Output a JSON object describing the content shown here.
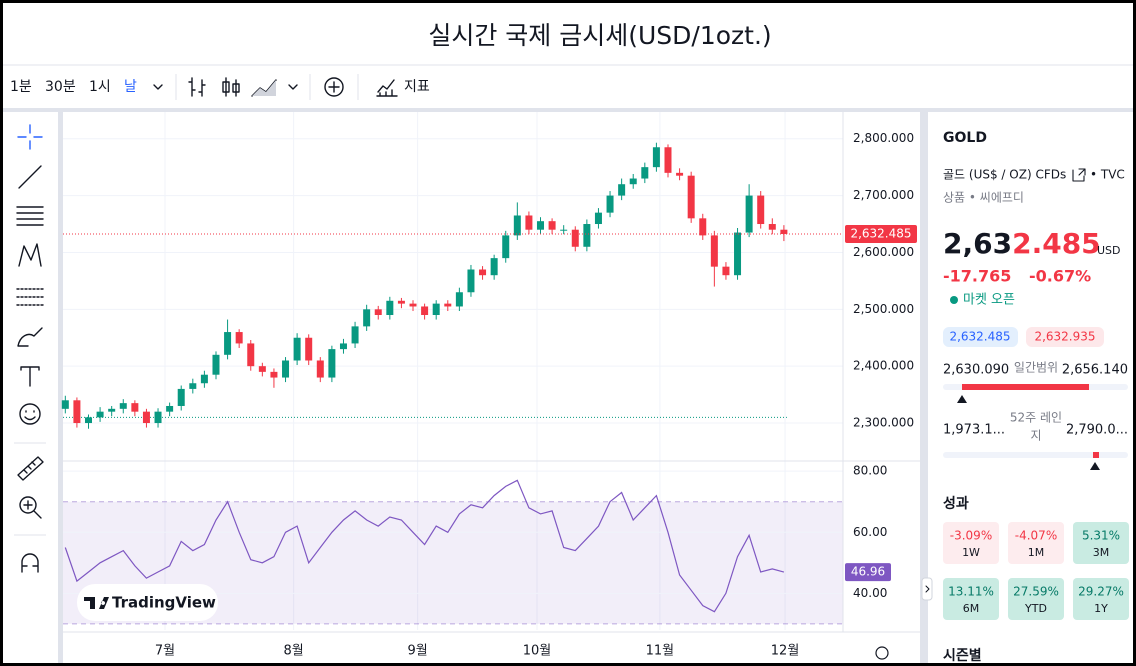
{
  "header": {
    "title": "실시간 국제 금시세(USD/1ozt.)"
  },
  "toolbar": {
    "intervals": [
      "1분",
      "30분",
      "1시",
      "날"
    ],
    "indicators": "지표"
  },
  "chart_data": {
    "type": "candlestick",
    "open": [
      2325,
      2340,
      2300,
      2310,
      2320,
      2325,
      2335,
      2320,
      2300,
      2320,
      2330,
      2360,
      2370,
      2385,
      2420,
      2460,
      2440,
      2400,
      2390,
      2380,
      2410,
      2450,
      2410,
      2380,
      2430,
      2440,
      2470,
      2500,
      2490,
      2515,
      2510,
      2505,
      2490,
      2510,
      2505,
      2530,
      2570,
      2560,
      2590,
      2630,
      2665,
      2640,
      2655,
      2640,
      2640,
      2610,
      2650,
      2670,
      2700,
      2720,
      2730,
      2750,
      2785,
      2740,
      2735,
      2660,
      2630,
      2575,
      2560,
      2635,
      2700,
      2650,
      2640
    ],
    "high": [
      2348,
      2345,
      2315,
      2328,
      2330,
      2342,
      2340,
      2325,
      2326,
      2336,
      2366,
      2378,
      2392,
      2426,
      2482,
      2465,
      2446,
      2406,
      2396,
      2416,
      2458,
      2456,
      2416,
      2436,
      2448,
      2478,
      2508,
      2506,
      2522,
      2520,
      2516,
      2510,
      2516,
      2516,
      2538,
      2578,
      2576,
      2596,
      2638,
      2688,
      2672,
      2662,
      2660,
      2648,
      2646,
      2658,
      2678,
      2708,
      2730,
      2738,
      2758,
      2793,
      2790,
      2748,
      2742,
      2668,
      2638,
      2583,
      2643,
      2720,
      2708,
      2660,
      2648
    ],
    "low": [
      2317,
      2292,
      2290,
      2302,
      2312,
      2317,
      2312,
      2292,
      2292,
      2312,
      2322,
      2352,
      2362,
      2377,
      2412,
      2432,
      2392,
      2382,
      2362,
      2372,
      2402,
      2402,
      2372,
      2372,
      2422,
      2432,
      2462,
      2482,
      2482,
      2502,
      2497,
      2482,
      2482,
      2497,
      2497,
      2522,
      2552,
      2552,
      2582,
      2622,
      2632,
      2632,
      2632,
      2632,
      2602,
      2602,
      2642,
      2662,
      2692,
      2712,
      2722,
      2742,
      2732,
      2727,
      2652,
      2622,
      2540,
      2552,
      2552,
      2627,
      2642,
      2632,
      2620
    ],
    "close": [
      2340,
      2300,
      2310,
      2320,
      2325,
      2335,
      2320,
      2300,
      2320,
      2330,
      2360,
      2370,
      2385,
      2420,
      2460,
      2440,
      2400,
      2390,
      2380,
      2410,
      2450,
      2410,
      2380,
      2430,
      2440,
      2470,
      2500,
      2490,
      2515,
      2510,
      2505,
      2490,
      2510,
      2505,
      2530,
      2570,
      2560,
      2590,
      2630,
      2665,
      2640,
      2655,
      2640,
      2640,
      2610,
      2650,
      2670,
      2700,
      2720,
      2730,
      2750,
      2785,
      2740,
      2735,
      2660,
      2630,
      2575,
      2560,
      2635,
      2700,
      2650,
      2640,
      2632.485
    ],
    "colors": {
      "up": "#089981",
      "down": "#f23645"
    },
    "xlim": [
      -0.2,
      67.1
    ],
    "xticks": [
      {
        "value": 8.6,
        "label": "7월"
      },
      {
        "value": 19.7,
        "label": "8월"
      },
      {
        "value": 30.4,
        "label": "9월"
      },
      {
        "value": 40.7,
        "label": "10월"
      },
      {
        "value": 51.3,
        "label": "11월"
      },
      {
        "value": 62.1,
        "label": "12월"
      }
    ],
    "ylim": [
      2235,
      2847
    ],
    "yticks": [
      {
        "value": 2300,
        "label": "2,300.000"
      },
      {
        "value": 2400,
        "label": "2,400.000"
      },
      {
        "value": 2500,
        "label": "2,500.000"
      },
      {
        "value": 2600,
        "label": "2,600.000"
      },
      {
        "value": 2700,
        "label": "2,700.000"
      },
      {
        "value": 2800,
        "label": "2,800.000"
      }
    ],
    "grid": true,
    "last_price_label": "2,632.485",
    "baseline_value": 2310,
    "watermark": "TradingView",
    "rsi": {
      "type": "line",
      "color": "#7e57c2",
      "values": [
        55,
        44,
        47,
        50,
        52,
        54,
        49,
        45,
        47,
        49,
        57,
        54,
        56,
        64,
        70,
        60,
        51,
        50,
        52,
        60,
        62,
        50,
        55,
        60,
        64,
        67,
        64,
        62,
        65,
        64,
        60,
        56,
        62,
        60,
        66,
        69,
        68,
        72,
        75,
        77,
        68,
        66,
        67,
        55,
        54,
        58,
        62,
        70,
        73,
        64,
        68,
        72,
        60,
        46,
        41,
        36,
        34,
        40,
        52,
        59,
        47,
        48,
        46.96
      ],
      "ylim": [
        28,
        83
      ],
      "yticks": [
        {
          "value": 40,
          "label": "40.00"
        },
        {
          "value": 60,
          "label": "60.00"
        },
        {
          "value": 80,
          "label": "80.00"
        }
      ],
      "band": [
        30,
        70
      ]
    }
  },
  "symbol_panel": {
    "symbol": "GOLD",
    "description": "골드 (US$ / OZ) CFDs",
    "exchange": "• TVC",
    "category": "상품 • 씨에프디",
    "price_main": "2,63",
    "price_accent": "2.485",
    "currency": "USD",
    "change": "-17.765",
    "change_percent": "-0.67%",
    "market_status": "마켓 오픈",
    "bid": "2,632.485",
    "ask": "2,632.935",
    "day_low": "2,630.090",
    "day_range_label": "일간범위",
    "day_high": "2,656.140",
    "year_low": "1,973.1...",
    "year_range_label": [
      "52주 레인",
      "지"
    ],
    "year_high": "2,790.0...",
    "performance_title": "성과",
    "performance": [
      {
        "value": "-3.09%",
        "label": "1W"
      },
      {
        "value": "-4.07%",
        "label": "1M"
      },
      {
        "value": "5.31%",
        "label": "3M"
      },
      {
        "value": "13.11%",
        "label": "6M"
      },
      {
        "value": "27.59%",
        "label": "YTD"
      },
      {
        "value": "29.27%",
        "label": "1Y"
      }
    ],
    "seasonal_title": "시즌별"
  }
}
